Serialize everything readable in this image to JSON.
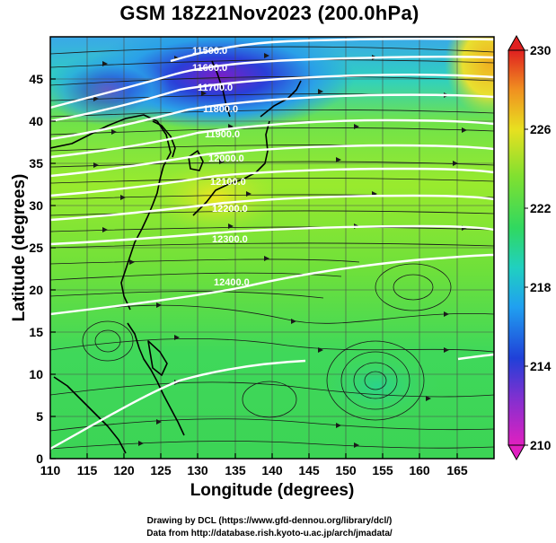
{
  "title": "GSM 18Z21Nov2023 (200.0hPa)",
  "axes": {
    "xlabel": "Longitude (degrees)",
    "ylabel": "Latitude  (degrees)",
    "x_ticks": [
      "110",
      "115",
      "120",
      "125",
      "130",
      "135",
      "140",
      "145",
      "150",
      "155",
      "160",
      "165"
    ],
    "y_ticks": [
      "0",
      "5",
      "10",
      "15",
      "20",
      "25",
      "30",
      "35",
      "40",
      "45"
    ]
  },
  "colorbar": {
    "ticks": [
      "230",
      "226",
      "222",
      "218",
      "214",
      "210"
    ],
    "min": 210,
    "max": 230
  },
  "contour_labels": [
    "11500.0",
    "11600.0",
    "11700.0",
    "11800.0",
    "11900.0",
    "12000.0",
    "12100.0",
    "12200.0",
    "12300.0",
    "12400.0"
  ],
  "credits": {
    "line1": "Drawing by DCL (https://www.gfd-dennou.org/library/dcl/)",
    "line2": "Data from http://database.rish.kyoto-u.ac.jp/arch/jmadata/"
  },
  "chart_data": {
    "type": "heatmap",
    "title": "GSM 18Z21Nov2023 (200.0hPa)",
    "xlabel": "Longitude (degrees)",
    "ylabel": "Latitude  (degrees)",
    "xlim": [
      110,
      170
    ],
    "ylim": [
      0,
      50
    ],
    "grid": true,
    "color_scale": [
      210,
      230
    ],
    "colorbar_position": "right",
    "contour_levels": [
      11500,
      11600,
      11700,
      11800,
      11900,
      12000,
      12100,
      12200,
      12300,
      12400
    ],
    "features": [
      "wind streamlines",
      "coastlines",
      "cyclonic circulation near 153E 10N"
    ]
  }
}
